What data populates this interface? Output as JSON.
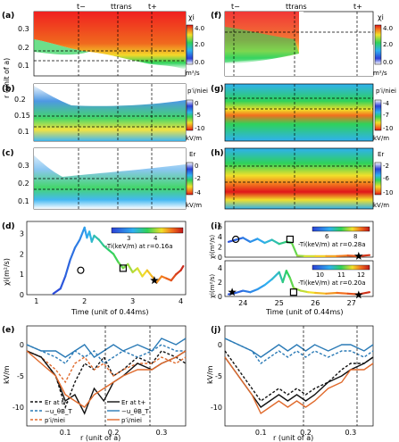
{
  "figure": {
    "panels": {
      "a": {
        "label": "(a)",
        "quantity": "χi",
        "units": "m²/s",
        "ylabel": "r (unit of a)",
        "yticks": [
          "0.3",
          "0.2",
          "0.1"
        ],
        "cbar_ticks": [
          "4.0",
          "2.0",
          "0.0"
        ]
      },
      "b": {
        "label": "(b)",
        "quantity": "p′i/niei",
        "units": "kV/m",
        "yticks": [
          "0.2",
          "0.15",
          "0.1"
        ],
        "cbar_ticks": [
          "0",
          "-5",
          "-10"
        ]
      },
      "c": {
        "label": "(c)",
        "quantity": "Er",
        "units": "kV/m",
        "yticks": [
          "0.3",
          "0.2",
          "0.1"
        ],
        "cbar_ticks": [
          "0",
          "-2",
          "-4"
        ]
      },
      "d": {
        "label": "(d)",
        "ylabel": "χi(m²/s)",
        "xlabel": "Time (unit of 0.44ms)",
        "yticks": [
          "0",
          "1",
          "2",
          "3"
        ],
        "xticks": [
          "1",
          "2",
          "3",
          "4"
        ],
        "cbar_title": "-Ti(keV/m) at r=0.16a",
        "cbar_ticks": [
          "3",
          "4"
        ]
      },
      "e": {
        "label": "(e)",
        "ylabel": "kV/m",
        "xlabel": "r (unit of a)",
        "yticks": [
          "0",
          "-5",
          "-10"
        ],
        "xticks": [
          "0.1",
          "0.2",
          "0.3"
        ]
      },
      "f": {
        "label": "(f)",
        "quantity": "χi",
        "units": "m²/s",
        "cbar_ticks": [
          "4.0",
          "2.0",
          "0.0"
        ]
      },
      "g": {
        "label": "(g)",
        "quantity": "p′i/niei",
        "units": "kV/m",
        "cbar_ticks": [
          "-4",
          "-7",
          "-10"
        ]
      },
      "h": {
        "label": "(h)",
        "quantity": "Er",
        "units": "kV/m",
        "cbar_ticks": [
          "-2",
          "-6",
          "-10"
        ]
      },
      "i": {
        "label": "(i)",
        "ylabel_top": "χi(m²/s)",
        "ylabel_bottom": "χi(m²/s)",
        "xlabel": "Time (unit of 0.44ms)",
        "yticks_top": [
          "0",
          "2",
          "4",
          "6"
        ],
        "yticks_bottom": [
          "0",
          "2",
          "4"
        ],
        "xticks": [
          "24",
          "25",
          "26",
          "27"
        ],
        "cbar_top_title": "-Ti(keV/m) at r=0.28a",
        "cbar_top_ticks": [
          "6",
          "8"
        ],
        "cbar_bottom_title": "-Ti(keV/m) at r=0.20a",
        "cbar_bottom_ticks": [
          "10",
          "11",
          "12"
        ]
      },
      "j": {
        "label": "(j)",
        "ylabel": "kV/m",
        "xlabel": "r (unit of a)",
        "yticks": [
          "0",
          "-5",
          "-10"
        ],
        "xticks": [
          "0.1",
          "0.2",
          "0.3"
        ]
      }
    },
    "time_markers": {
      "t_minus": "t−",
      "t_trans": "ttrans",
      "t_plus": "t+"
    },
    "legend_e": {
      "er_minus": "Er at t−",
      "pi_minus_vpol": "−u_θB_T",
      "pi_minus": "p′i/niei",
      "er_plus": "Er at t+",
      "vpol_plus": "−u_θB_T",
      "pi_plus": "p′i/niei"
    },
    "colors": {
      "black": "#111111",
      "blue": "#2a7ab6",
      "orange": "#e06a2c"
    }
  },
  "chart_data": [
    {
      "type": "line",
      "title": "",
      "xlabel": "Time (unit of 0.44ms)",
      "ylabel": "χi(m²/s)",
      "xlim": [
        0.8,
        4.1
      ],
      "ylim": [
        0,
        3.6
      ],
      "series": [
        {
          "x": [
            1.35,
            1.5,
            1.6,
            1.7,
            1.8,
            1.9,
            1.95,
            2.0,
            2.05,
            2.1,
            2.15,
            2.2,
            2.3,
            2.4,
            2.5,
            2.6,
            2.7,
            2.8,
            2.9,
            3.0,
            3.1,
            3.2,
            3.3,
            3.4,
            3.5,
            3.6,
            3.7,
            3.8,
            3.9,
            4.0,
            4.05
          ],
          "y": [
            0.05,
            0.3,
            0.9,
            1.7,
            2.3,
            2.7,
            3.0,
            3.3,
            2.8,
            3.1,
            2.6,
            2.9,
            2.7,
            2.4,
            2.2,
            2.0,
            1.6,
            1.3,
            1.5,
            1.1,
            1.3,
            0.9,
            1.2,
            0.9,
            0.6,
            0.9,
            0.8,
            0.7,
            1.0,
            1.2,
            1.4
          ]
        }
      ],
      "markers": [
        {
          "shape": "circle",
          "x": 1.92,
          "y": 1.2
        },
        {
          "shape": "square",
          "x": 2.8,
          "y": 1.3
        },
        {
          "shape": "star",
          "x": 3.45,
          "y": 0.7
        }
      ]
    },
    {
      "type": "line",
      "xlabel": "r (unit of a)",
      "ylabel": "kV/m",
      "xlim": [
        0.02,
        0.35
      ],
      "ylim": [
        -13,
        3
      ],
      "series": [
        {
          "name": "Er at t−",
          "x": [
            0.02,
            0.05,
            0.08,
            0.1,
            0.12,
            0.14,
            0.16,
            0.18,
            0.2,
            0.22,
            0.25,
            0.28,
            0.3,
            0.33,
            0.35
          ],
          "y": [
            -1,
            -2,
            -5,
            -10,
            -6,
            -3,
            -4,
            -2,
            -5,
            -4,
            -2,
            -3,
            -1,
            -2,
            -3
          ]
        },
        {
          "name": "−u_θB_T",
          "x": [
            0.02,
            0.05,
            0.08,
            0.1,
            0.12,
            0.14,
            0.16,
            0.18,
            0.2,
            0.22,
            0.25,
            0.28,
            0.3,
            0.33,
            0.35
          ],
          "y": [
            0,
            -1,
            -2,
            -3,
            -1,
            -2,
            -1,
            -3,
            -2,
            -1,
            -2,
            -1,
            0,
            -1,
            -1
          ]
        },
        {
          "name": "p′i/niei",
          "x": [
            0.02,
            0.05,
            0.08,
            0.1,
            0.12,
            0.14,
            0.16,
            0.18,
            0.2,
            0.22,
            0.25,
            0.28,
            0.3,
            0.33,
            0.35
          ],
          "y": [
            -1,
            -2,
            -4,
            -6,
            -3,
            -2,
            -4,
            -3,
            -5,
            -4,
            -3,
            -3,
            -2,
            -3,
            -2
          ]
        },
        {
          "name": "Er at t+",
          "x": [
            0.02,
            0.05,
            0.08,
            0.1,
            0.12,
            0.14,
            0.16,
            0.18,
            0.2,
            0.22,
            0.25,
            0.28,
            0.3,
            0.33,
            0.35
          ],
          "y": [
            -1,
            -2,
            -5,
            -9,
            -8,
            -11,
            -7,
            -9,
            -6,
            -5,
            -3,
            -4,
            -3,
            -2,
            -1
          ]
        },
        {
          "name": "−u_θB_T",
          "x": [
            0.02,
            0.05,
            0.08,
            0.1,
            0.12,
            0.14,
            0.16,
            0.18,
            0.2,
            0.22,
            0.25,
            0.28,
            0.3,
            0.33,
            0.35
          ],
          "y": [
            0,
            -1,
            -1,
            -2,
            -1,
            0,
            -2,
            -1,
            0,
            -1,
            0,
            -1,
            1,
            0,
            1
          ]
        },
        {
          "name": "p′i/niei",
          "x": [
            0.02,
            0.05,
            0.08,
            0.1,
            0.12,
            0.14,
            0.16,
            0.18,
            0.2,
            0.22,
            0.25,
            0.28,
            0.3,
            0.33,
            0.35
          ],
          "y": [
            -1,
            -3,
            -5,
            -8,
            -9,
            -10,
            -8,
            -7,
            -6,
            -5,
            -4,
            -4,
            -3,
            -2,
            -1
          ]
        }
      ]
    },
    {
      "type": "line",
      "xlabel": "Time (unit of 0.44ms)",
      "ylabel": "χi(m²/s)",
      "xlim": [
        23.5,
        27.6
      ],
      "ylim": [
        0,
        7
      ],
      "series": [
        {
          "x": [
            23.6,
            23.8,
            24.0,
            24.2,
            24.4,
            24.6,
            24.8,
            25.0,
            25.2,
            25.35,
            25.5,
            25.7,
            26.0,
            26.3,
            26.6,
            26.9,
            27.2,
            27.5
          ],
          "y": [
            3.0,
            3.4,
            3.8,
            3.0,
            3.6,
            2.8,
            3.4,
            2.6,
            3.0,
            2.8,
            0.3,
            0.2,
            0.2,
            0.2,
            0.2,
            0.3,
            0.2,
            0.4
          ]
        }
      ],
      "markers": [
        {
          "shape": "circle",
          "x": 23.8,
          "y": 3.5
        },
        {
          "shape": "square",
          "x": 25.3,
          "y": 3.5
        },
        {
          "shape": "star",
          "x": 27.2,
          "y": 0.2
        }
      ]
    },
    {
      "type": "line",
      "xlabel": "Time (unit of 0.44ms)",
      "ylabel": "χi(m²/s)",
      "xlim": [
        23.5,
        27.6
      ],
      "ylim": [
        0,
        5
      ],
      "series": [
        {
          "x": [
            23.6,
            23.8,
            24.0,
            24.2,
            24.4,
            24.6,
            24.8,
            25.0,
            25.1,
            25.2,
            25.3,
            25.4,
            25.6,
            25.8,
            26.0,
            26.3,
            26.6,
            26.9,
            27.2,
            27.5
          ],
          "y": [
            0.3,
            0.5,
            0.8,
            0.6,
            1.0,
            1.6,
            2.4,
            3.4,
            2.0,
            3.6,
            2.6,
            1.2,
            0.8,
            0.6,
            0.5,
            0.4,
            0.5,
            0.4,
            0.3,
            0.6
          ]
        }
      ],
      "markers": [
        {
          "shape": "star",
          "x": 23.7,
          "y": 0.6
        },
        {
          "shape": "square",
          "x": 25.4,
          "y": 0.6
        },
        {
          "shape": "star",
          "x": 27.2,
          "y": 0.2
        }
      ]
    },
    {
      "type": "line",
      "xlabel": "r (unit of a)",
      "ylabel": "kV/m",
      "xlim": [
        0.02,
        0.35
      ],
      "ylim": [
        -13,
        3
      ],
      "series": [
        {
          "x": [
            0.02,
            0.05,
            0.08,
            0.1,
            0.12,
            0.14,
            0.16,
            0.18,
            0.2,
            0.22,
            0.25,
            0.28,
            0.3,
            0.33,
            0.35
          ],
          "y": [
            1,
            0,
            -1,
            -3,
            -2,
            -1,
            -2,
            -1,
            -2,
            -1,
            -2,
            -1,
            -1,
            -2,
            -1
          ]
        },
        {
          "x": [
            0.02,
            0.05,
            0.08,
            0.1,
            0.12,
            0.14,
            0.16,
            0.18,
            0.2,
            0.22,
            0.25,
            0.28,
            0.3,
            0.33,
            0.35
          ],
          "y": [
            1,
            0,
            -1,
            -2,
            -1,
            0,
            -1,
            0,
            -1,
            0,
            -1,
            0,
            0,
            -1,
            0
          ]
        },
        {
          "x": [
            0.02,
            0.05,
            0.08,
            0.1,
            0.12,
            0.14,
            0.16,
            0.18,
            0.2,
            0.22,
            0.25,
            0.28,
            0.3,
            0.33,
            0.35
          ],
          "y": [
            -1,
            -4,
            -7,
            -9,
            -8,
            -7,
            -8,
            -7,
            -8,
            -7,
            -6,
            -4,
            -3,
            -3,
            -2
          ]
        },
        {
          "x": [
            0.02,
            0.05,
            0.08,
            0.1,
            0.12,
            0.14,
            0.16,
            0.18,
            0.2,
            0.22,
            0.25,
            0.28,
            0.3,
            0.33,
            0.35
          ],
          "y": [
            -2,
            -5,
            -8,
            -10,
            -9,
            -8,
            -9,
            -8,
            -9,
            -8,
            -6,
            -5,
            -4,
            -3,
            -2
          ]
        },
        {
          "x": [
            0.02,
            0.05,
            0.08,
            0.1,
            0.12,
            0.14,
            0.16,
            0.18,
            0.2,
            0.22,
            0.25,
            0.28,
            0.3,
            0.33,
            0.35
          ],
          "y": [
            -2,
            -5,
            -8,
            -11,
            -10,
            -9,
            -10,
            -9,
            -10,
            -9,
            -7,
            -6,
            -4,
            -4,
            -3
          ]
        }
      ]
    }
  ]
}
